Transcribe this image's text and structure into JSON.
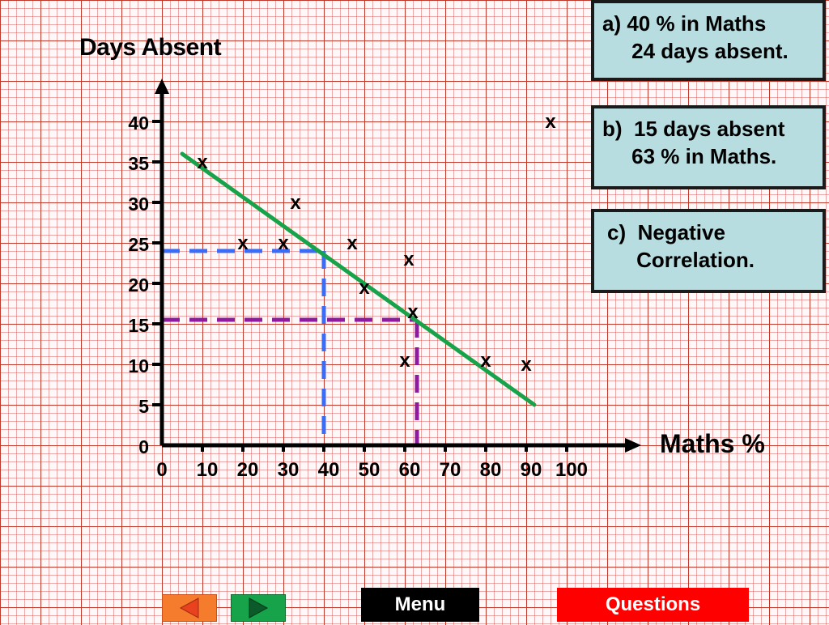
{
  "chart_data": {
    "type": "scatter",
    "xlabel": "Maths %",
    "ylabel": "Days Absent",
    "xlim": [
      0,
      100
    ],
    "ylim": [
      0,
      40
    ],
    "x_ticks": [
      "0",
      "10",
      "20",
      "30",
      "40",
      "50",
      "60",
      "70",
      "80",
      "90",
      "100"
    ],
    "y_ticks": [
      "0",
      "5",
      "10",
      "15",
      "20",
      "25",
      "30",
      "35",
      "40"
    ],
    "marker": "x",
    "points": [
      {
        "x": 10,
        "y": 35
      },
      {
        "x": 33,
        "y": 30
      },
      {
        "x": 20,
        "y": 25
      },
      {
        "x": 30,
        "y": 25
      },
      {
        "x": 47,
        "y": 25
      },
      {
        "x": 61,
        "y": 23
      },
      {
        "x": 50,
        "y": 19.5
      },
      {
        "x": 62,
        "y": 16.5
      },
      {
        "x": 60,
        "y": 10.5
      },
      {
        "x": 80,
        "y": 10.5
      },
      {
        "x": 90,
        "y": 10
      },
      {
        "x": 96,
        "y": 40
      }
    ],
    "line_of_best_fit": {
      "from": {
        "x": 5,
        "y": 36
      },
      "to": {
        "x": 92,
        "y": 5
      },
      "color": "#16a34a"
    },
    "guides": [
      {
        "x": 40,
        "y": 24,
        "color": "#3b6cf5"
      },
      {
        "x": 63,
        "y": 15.5,
        "color": "#8e1a9e"
      }
    ]
  },
  "answers": {
    "a": {
      "line1": "a) 40 % in Maths",
      "line2": "     24 days absent."
    },
    "b": {
      "line1": "b)  15 days absent",
      "line2": "     63 % in Maths."
    },
    "c": {
      "line1": "c)  Negative",
      "line2": "     Correlation."
    }
  },
  "nav": {
    "prev_icon": "left-arrow-icon",
    "next_icon": "right-arrow-icon",
    "menu_label": "Menu",
    "questions_label": "Questions"
  }
}
